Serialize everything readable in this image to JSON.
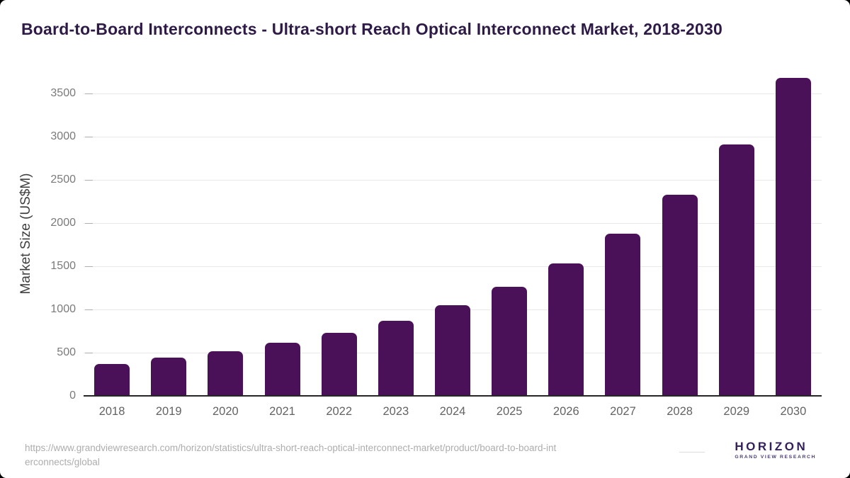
{
  "chart_data": {
    "type": "bar",
    "title": "Board-to-Board Interconnects - Ultra-short Reach Optical Interconnect Market, 2018-2030",
    "categories": [
      "2018",
      "2019",
      "2020",
      "2021",
      "2022",
      "2023",
      "2024",
      "2025",
      "2026",
      "2027",
      "2028",
      "2029",
      "2030"
    ],
    "values": [
      370,
      440,
      515,
      615,
      730,
      865,
      1050,
      1260,
      1530,
      1880,
      2325,
      2910,
      3680
    ],
    "xlabel": "",
    "ylabel": "Market Size (US$M)",
    "yticks": [
      0,
      500,
      1000,
      1500,
      2000,
      2500,
      3000,
      3500
    ],
    "ylim": [
      0,
      3750
    ],
    "grid": "horizontal",
    "legend_position": "none",
    "bar_color": "#4a1158"
  },
  "colors": {
    "title": "#2e1a47",
    "bar": "#4a1158",
    "gridline": "#e9e9e9",
    "axis": "#262626",
    "tick_label": "#7a7a7a",
    "x_label": "#636363",
    "url_text": "#adadad",
    "logo_navy": "#2e1d50",
    "logo_blue": "#5ac8f5"
  },
  "footer": {
    "url_line1": "https://www.grandviewresearch.com/horizon/statistics/ultra-short-reach-optical-interconnect-market/product/board-to-board-int",
    "url_line2": "erconnects/global",
    "logo": {
      "brand": "HORIZON",
      "tagline": "GRAND VIEW RESEARCH"
    }
  }
}
